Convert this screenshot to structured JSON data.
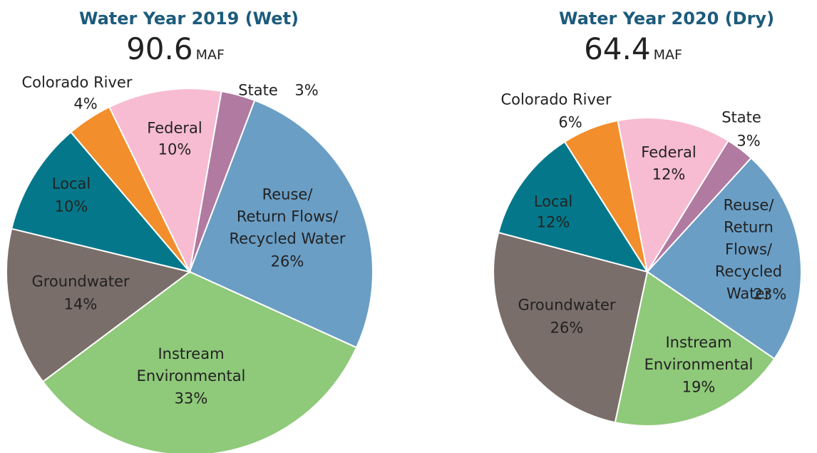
{
  "chart_data": [
    {
      "type": "pie",
      "title": "Water Year 2019 (Wet)",
      "total": 90.6,
      "total_unit": "MAF",
      "categories": [
        "State",
        "Reuse/\nReturn Flows/\nRecycled Water",
        "Instream\nEnvironmental",
        "Groundwater",
        "Local",
        "Colorado River",
        "Federal"
      ],
      "values": [
        3,
        26,
        33,
        14,
        10,
        4,
        10
      ],
      "value_labels": [
        "3%",
        "26%",
        "33%",
        "14%",
        "10%",
        "4%",
        "10%"
      ],
      "colors": [
        "#b07aa1",
        "#6a9ec5",
        "#8fc97a",
        "#7a6e6a",
        "#04788a",
        "#f28e2b",
        "#f7bcd1"
      ]
    },
    {
      "type": "pie",
      "title": "Water Year 2020 (Dry)",
      "total": 64.4,
      "total_unit": "MAF",
      "categories": [
        "State",
        "Reuse/\nReturn Flows/\nRecycled Water",
        "Instream\nEnvironmental",
        "Groundwater",
        "Local",
        "Colorado River",
        "Federal"
      ],
      "values": [
        3,
        23,
        19,
        26,
        12,
        6,
        12
      ],
      "value_labels": [
        "3%",
        "23%",
        "19%",
        "26%",
        "12%",
        "6%",
        "12%"
      ],
      "colors": [
        "#b07aa1",
        "#6a9ec5",
        "#8fc97a",
        "#7a6e6a",
        "#04788a",
        "#f28e2b",
        "#f7bcd1"
      ]
    }
  ]
}
